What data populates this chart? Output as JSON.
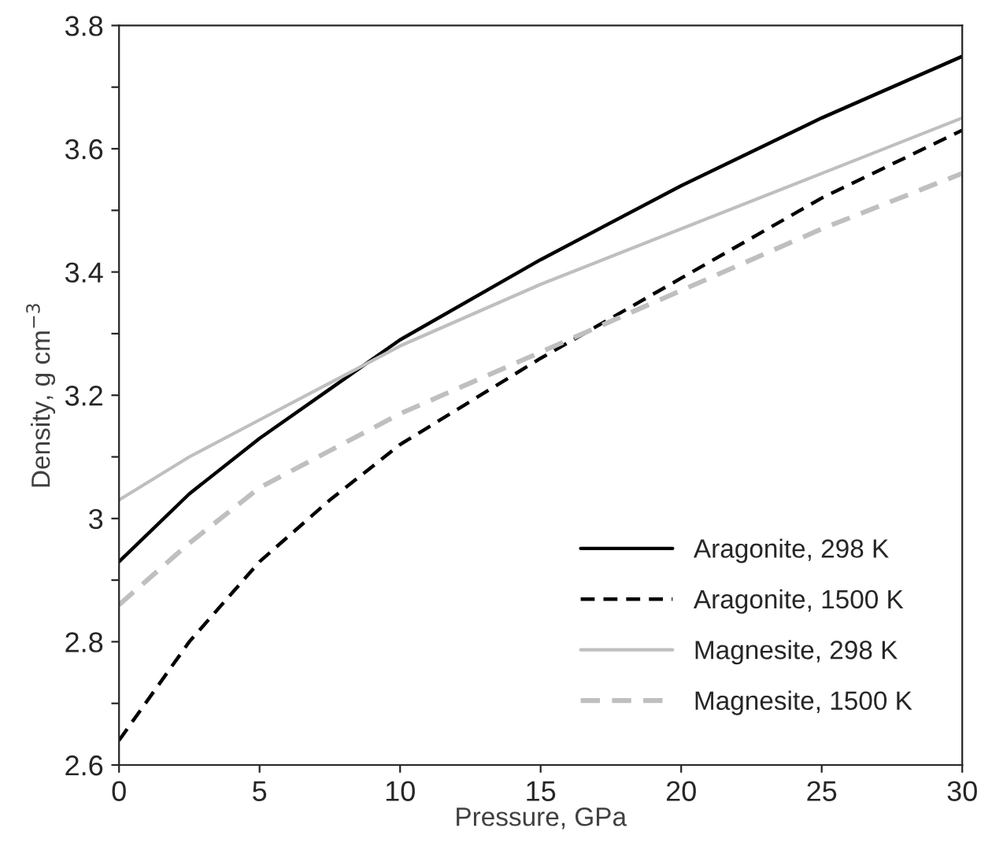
{
  "chart_data": {
    "type": "line",
    "xlabel": "Pressure, GPa",
    "ylabel": "Density, g cm$^{−3}$",
    "x": [
      0,
      2.5,
      5,
      7.5,
      10,
      15,
      20,
      25,
      30
    ],
    "series": [
      {
        "name": "Aragonite, 298 K",
        "color": "#000000",
        "line_style": "solid",
        "values": [
          2.93,
          3.04,
          3.13,
          3.21,
          3.29,
          3.42,
          3.54,
          3.65,
          3.75
        ]
      },
      {
        "name": "Aragonite, 1500 K",
        "color": "#000000",
        "line_style": "dashed",
        "values": [
          2.64,
          2.8,
          2.93,
          3.03,
          3.12,
          3.26,
          3.39,
          3.52,
          3.63
        ]
      },
      {
        "name": "Magnesite, 298 K",
        "color": "#bfbfbf",
        "line_style": "solid",
        "values": [
          3.03,
          3.1,
          3.16,
          3.22,
          3.28,
          3.38,
          3.47,
          3.56,
          3.65
        ]
      },
      {
        "name": "Magnesite, 1500 K",
        "color": "#bfbfbf",
        "line_style": "dashed",
        "values": [
          2.86,
          2.96,
          3.05,
          3.11,
          3.17,
          3.27,
          3.37,
          3.47,
          3.56
        ]
      }
    ],
    "xlim": [
      0,
      30
    ],
    "xticks": [
      0,
      5,
      10,
      15,
      20,
      25,
      30
    ],
    "ylim": [
      2.6,
      3.8
    ],
    "yticks": [
      2.6,
      {
        "value": 2.7,
        "label": null
      },
      2.8,
      {
        "value": 2.9,
        "label": null
      },
      {
        "value": 3,
        "label": "3"
      },
      {
        "value": 3.1,
        "label": null
      },
      3.2,
      {
        "value": 3.3,
        "label": null
      },
      3.4,
      {
        "value": 3.5,
        "label": null
      },
      3.6,
      {
        "value": 3.7,
        "label": null
      },
      3.8
    ],
    "grid": false,
    "legend": "bottom right",
    "marker": "none"
  }
}
